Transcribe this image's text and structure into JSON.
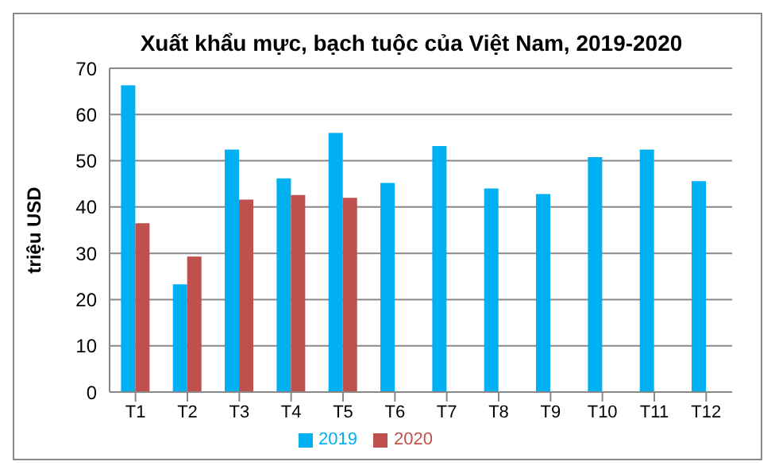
{
  "chart_data": {
    "type": "bar",
    "title": "Xuất khẩu mực, bạch tuộc của Việt Nam, 2019-2020",
    "ylabel": "triệu USD",
    "categories": [
      "T1",
      "T2",
      "T3",
      "T4",
      "T5",
      "T6",
      "T7",
      "T8",
      "T9",
      "T10",
      "T11",
      "T12"
    ],
    "series": [
      {
        "name": "2019",
        "color": "#00b0f0",
        "values": [
          66.3,
          23.3,
          52.4,
          46.2,
          56,
          45.2,
          53.2,
          44,
          42.8,
          50.8,
          52.4,
          45.6
        ]
      },
      {
        "name": "2020",
        "color": "#c0504d",
        "values": [
          36.5,
          29.3,
          41.6,
          42.6,
          42,
          null,
          null,
          null,
          null,
          null,
          null,
          null
        ]
      }
    ],
    "ylim": [
      0,
      70
    ],
    "yticks": [
      0,
      10,
      20,
      30,
      40,
      50,
      60,
      70
    ],
    "grid": "y",
    "legend": "bottom"
  }
}
